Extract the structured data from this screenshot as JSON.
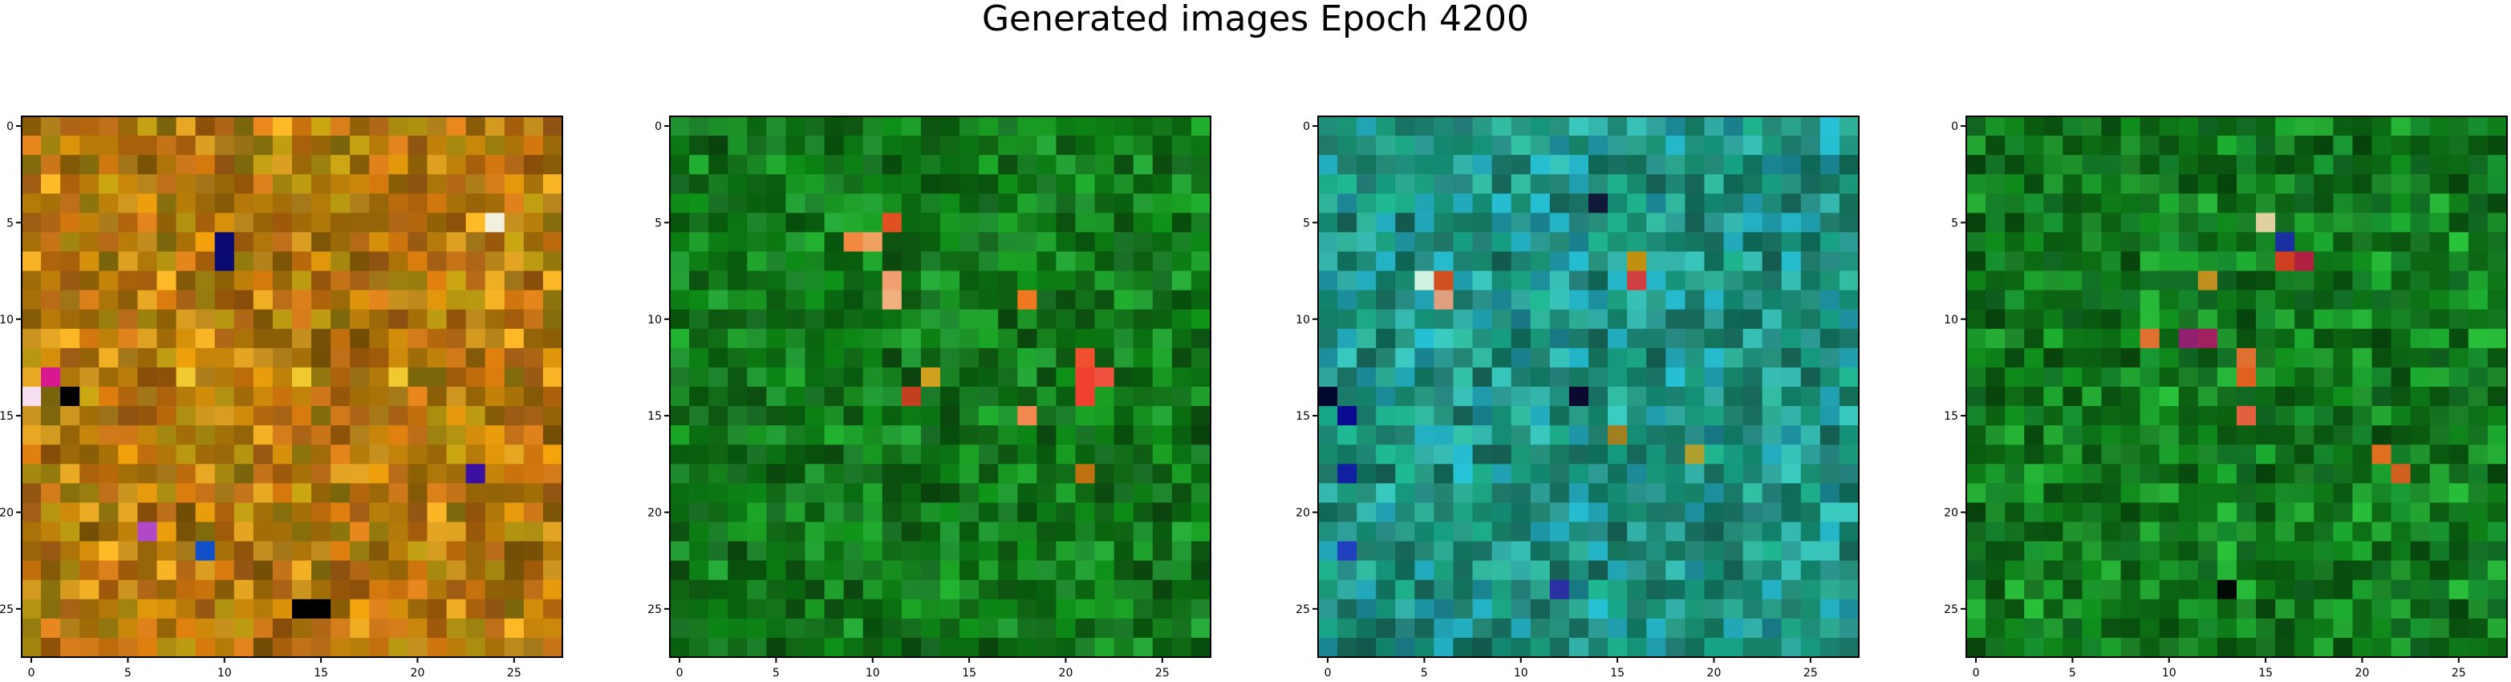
{
  "figure": {
    "title": "Generated images Epoch 4200"
  },
  "chart_data": [
    {
      "type": "heatmap",
      "title": "",
      "xlabel": "",
      "ylabel": "",
      "xlim": [
        -0.5,
        27.5
      ],
      "ylim": [
        27.5,
        -0.5
      ],
      "x_ticks": [
        0,
        5,
        10,
        15,
        20,
        25
      ],
      "y_ticks": [
        0,
        5,
        10,
        15,
        20,
        25
      ],
      "grid_shape": [
        28,
        28
      ],
      "palette_theme": "amber-orange",
      "base_colors": [
        "#c8860a",
        "#b8690c",
        "#a88a10",
        "#d49a20",
        "#9c6a08",
        "#c07018"
      ],
      "highlights": [
        {
          "x": 24,
          "y": 5,
          "color": "#f4f0e0"
        },
        {
          "x": 10,
          "y": 6,
          "color": "#0a0a70"
        },
        {
          "x": 10,
          "y": 7,
          "color": "#0a0a70"
        },
        {
          "x": 0,
          "y": 14,
          "color": "#f6e0f0"
        },
        {
          "x": 1,
          "y": 13,
          "color": "#d81890"
        },
        {
          "x": 2,
          "y": 14,
          "color": "#000000"
        },
        {
          "x": 23,
          "y": 18,
          "color": "#3a10a0"
        },
        {
          "x": 6,
          "y": 21,
          "color": "#b048c8"
        },
        {
          "x": 9,
          "y": 22,
          "color": "#1050c8"
        },
        {
          "x": 14,
          "y": 25,
          "color": "#000000"
        },
        {
          "x": 15,
          "y": 25,
          "color": "#000000"
        },
        {
          "x": 8,
          "y": 13,
          "color": "#f0c830"
        },
        {
          "x": 14,
          "y": 13,
          "color": "#f0c830"
        },
        {
          "x": 19,
          "y": 13,
          "color": "#f0c830"
        }
      ]
    },
    {
      "type": "heatmap",
      "title": "",
      "xlabel": "",
      "ylabel": "",
      "xlim": [
        -0.5,
        27.5
      ],
      "ylim": [
        27.5,
        -0.5
      ],
      "x_ticks": [
        0,
        5,
        10,
        15,
        20,
        25
      ],
      "y_ticks": [
        0,
        5,
        10,
        15,
        20,
        25
      ],
      "grid_shape": [
        28,
        28
      ],
      "palette_theme": "green",
      "base_colors": [
        "#0c7a14",
        "#16881e",
        "#0a6a10",
        "#1c9428",
        "#0e5a12",
        "#209030"
      ],
      "highlights": [
        {
          "x": 9,
          "y": 6,
          "color": "#f08840"
        },
        {
          "x": 10,
          "y": 6,
          "color": "#f0a060"
        },
        {
          "x": 11,
          "y": 5,
          "color": "#e05020"
        },
        {
          "x": 11,
          "y": 8,
          "color": "#f0a070"
        },
        {
          "x": 11,
          "y": 9,
          "color": "#f0b080"
        },
        {
          "x": 18,
          "y": 9,
          "color": "#f07820"
        },
        {
          "x": 21,
          "y": 12,
          "color": "#f05030"
        },
        {
          "x": 21,
          "y": 13,
          "color": "#f04030"
        },
        {
          "x": 22,
          "y": 13,
          "color": "#f05040"
        },
        {
          "x": 21,
          "y": 14,
          "color": "#f04030"
        },
        {
          "x": 12,
          "y": 14,
          "color": "#c04020"
        },
        {
          "x": 13,
          "y": 13,
          "color": "#d0a020"
        },
        {
          "x": 18,
          "y": 15,
          "color": "#f08850"
        },
        {
          "x": 21,
          "y": 18,
          "color": "#c07010"
        }
      ]
    },
    {
      "type": "heatmap",
      "title": "",
      "xlabel": "",
      "ylabel": "",
      "xlim": [
        -0.5,
        27.5
      ],
      "ylim": [
        27.5,
        -0.5
      ],
      "x_ticks": [
        0,
        5,
        10,
        15,
        20,
        25
      ],
      "y_ticks": [
        0,
        5,
        10,
        15,
        20,
        25
      ],
      "grid_shape": [
        28,
        28
      ],
      "palette_theme": "teal-blue",
      "base_colors": [
        "#1a9a7a",
        "#2aa08a",
        "#20a0b0",
        "#138870",
        "#30a8a0",
        "#1a7a6a"
      ],
      "highlights": [
        {
          "x": 5,
          "y": 8,
          "color": "#d0f0e0"
        },
        {
          "x": 6,
          "y": 8,
          "color": "#d05020"
        },
        {
          "x": 6,
          "y": 9,
          "color": "#e0a080"
        },
        {
          "x": 16,
          "y": 7,
          "color": "#c09010"
        },
        {
          "x": 16,
          "y": 8,
          "color": "#d04040"
        },
        {
          "x": 0,
          "y": 14,
          "color": "#000830"
        },
        {
          "x": 1,
          "y": 15,
          "color": "#0a0a90"
        },
        {
          "x": 1,
          "y": 18,
          "color": "#1020a0"
        },
        {
          "x": 1,
          "y": 22,
          "color": "#2040c0"
        },
        {
          "x": 15,
          "y": 16,
          "color": "#a08020"
        },
        {
          "x": 19,
          "y": 17,
          "color": "#b0a030"
        },
        {
          "x": 13,
          "y": 14,
          "color": "#0a0a30"
        },
        {
          "x": 12,
          "y": 24,
          "color": "#2a30a0"
        },
        {
          "x": 14,
          "y": 4,
          "color": "#10183a"
        }
      ]
    },
    {
      "type": "heatmap",
      "title": "",
      "xlabel": "",
      "ylabel": "",
      "xlim": [
        -0.5,
        27.5
      ],
      "ylim": [
        27.5,
        -0.5
      ],
      "x_ticks": [
        0,
        5,
        10,
        15,
        20,
        25
      ],
      "y_ticks": [
        0,
        5,
        10,
        15,
        20,
        25
      ],
      "grid_shape": [
        28,
        28
      ],
      "palette_theme": "deep-green",
      "base_colors": [
        "#0e7a18",
        "#189028",
        "#0a5a10",
        "#22a030",
        "#0c6814",
        "#14802a"
      ],
      "highlights": [
        {
          "x": 15,
          "y": 5,
          "color": "#e0d0a0"
        },
        {
          "x": 16,
          "y": 7,
          "color": "#d04020"
        },
        {
          "x": 17,
          "y": 7,
          "color": "#b02040"
        },
        {
          "x": 12,
          "y": 8,
          "color": "#c09020"
        },
        {
          "x": 16,
          "y": 6,
          "color": "#1830a0"
        },
        {
          "x": 9,
          "y": 11,
          "color": "#e07030"
        },
        {
          "x": 11,
          "y": 11,
          "color": "#902070"
        },
        {
          "x": 12,
          "y": 11,
          "color": "#a02060"
        },
        {
          "x": 14,
          "y": 12,
          "color": "#e07030"
        },
        {
          "x": 14,
          "y": 13,
          "color": "#e06020"
        },
        {
          "x": 14,
          "y": 15,
          "color": "#e06040"
        },
        {
          "x": 21,
          "y": 17,
          "color": "#e07020"
        },
        {
          "x": 22,
          "y": 18,
          "color": "#d06020"
        },
        {
          "x": 13,
          "y": 24,
          "color": "#000a04"
        }
      ]
    }
  ]
}
